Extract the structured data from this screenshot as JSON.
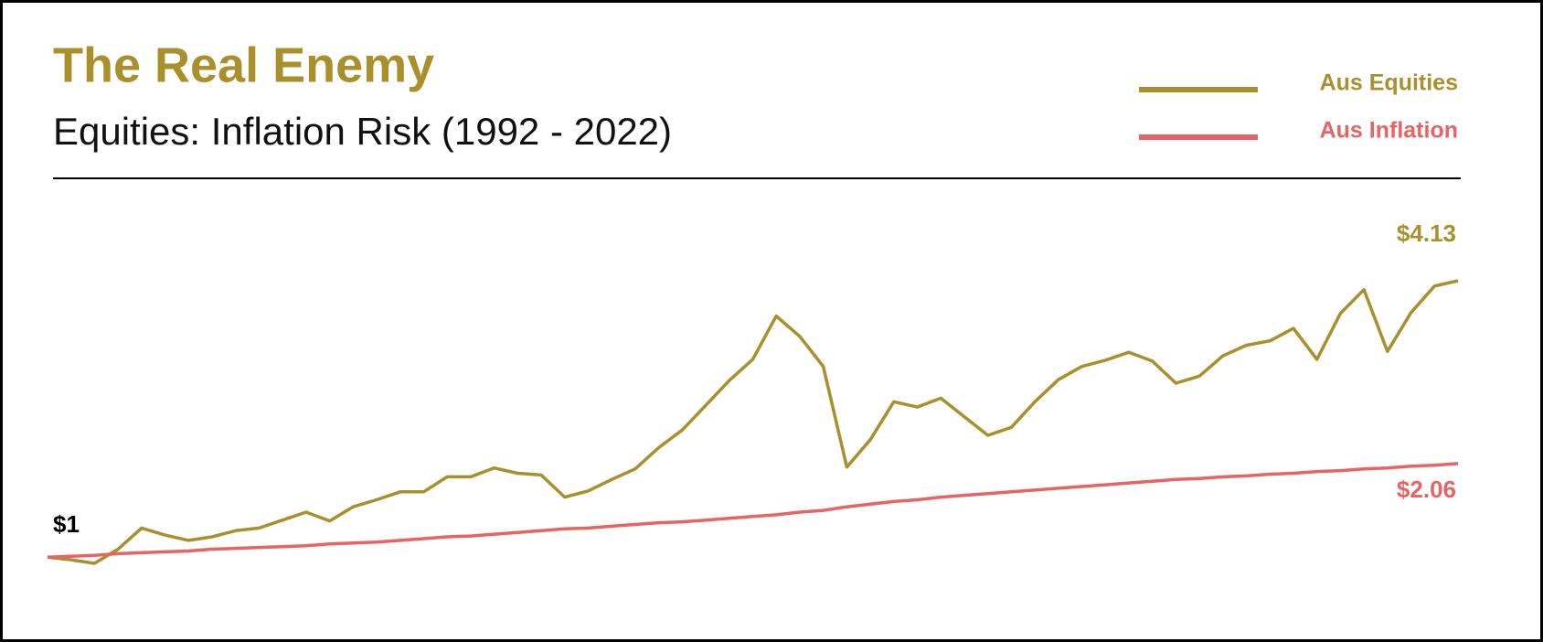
{
  "chart_data": {
    "type": "line",
    "title": "The Real Enemy",
    "subtitle": "Equities: Inflation Risk (1992 - 2022)",
    "legend": "top-right",
    "series": [
      {
        "name": "Aus Equities",
        "color": "#a8902c",
        "values": [
          1.0,
          0.97,
          0.93,
          1.09,
          1.33,
          1.25,
          1.19,
          1.23,
          1.3,
          1.33,
          1.42,
          1.51,
          1.41,
          1.57,
          1.65,
          1.74,
          1.74,
          1.91,
          1.91,
          2.01,
          1.95,
          1.93,
          1.68,
          1.75,
          1.88,
          2.0,
          2.24,
          2.44,
          2.72,
          3.0,
          3.24,
          3.73,
          3.5,
          3.16,
          2.02,
          2.33,
          2.76,
          2.7,
          2.8,
          2.59,
          2.38,
          2.47,
          2.76,
          3.01,
          3.16,
          3.23,
          3.32,
          3.22,
          2.97,
          3.05,
          3.28,
          3.4,
          3.45,
          3.59,
          3.24,
          3.76,
          4.03,
          3.33,
          3.77,
          4.07,
          4.13
        ],
        "value_labels": [
          "$1",
          null,
          null,
          null,
          null,
          null,
          null,
          null,
          null,
          null,
          null,
          null,
          null,
          null,
          null,
          null,
          null,
          null,
          null,
          null,
          null,
          null,
          null,
          null,
          null,
          null,
          null,
          null,
          null,
          null,
          null,
          null,
          null,
          null,
          null,
          null,
          null,
          null,
          null,
          null,
          null,
          null,
          null,
          null,
          null,
          null,
          null,
          null,
          null,
          null,
          null,
          null,
          null,
          null,
          null,
          null,
          null,
          null,
          null,
          null,
          "$4.13"
        ]
      },
      {
        "name": "Aus Inflation",
        "color": "#e86464",
        "values": [
          1.0,
          1.01,
          1.02,
          1.04,
          1.05,
          1.06,
          1.07,
          1.09,
          1.1,
          1.11,
          1.12,
          1.13,
          1.15,
          1.16,
          1.17,
          1.19,
          1.21,
          1.23,
          1.24,
          1.26,
          1.28,
          1.3,
          1.32,
          1.33,
          1.35,
          1.37,
          1.39,
          1.4,
          1.42,
          1.44,
          1.46,
          1.48,
          1.51,
          1.53,
          1.57,
          1.6,
          1.63,
          1.65,
          1.68,
          1.7,
          1.72,
          1.74,
          1.76,
          1.78,
          1.8,
          1.82,
          1.84,
          1.86,
          1.88,
          1.89,
          1.91,
          1.92,
          1.94,
          1.95,
          1.97,
          1.98,
          2.0,
          2.01,
          2.03,
          2.04,
          2.06
        ],
        "value_labels": [
          null,
          null,
          null,
          null,
          null,
          null,
          null,
          null,
          null,
          null,
          null,
          null,
          null,
          null,
          null,
          null,
          null,
          null,
          null,
          null,
          null,
          null,
          null,
          null,
          null,
          null,
          null,
          null,
          null,
          null,
          null,
          null,
          null,
          null,
          null,
          null,
          null,
          null,
          null,
          null,
          null,
          null,
          null,
          null,
          null,
          null,
          null,
          null,
          null,
          null,
          null,
          null,
          null,
          null,
          null,
          null,
          null,
          null,
          null,
          null,
          "$2.06"
        ]
      }
    ]
  }
}
